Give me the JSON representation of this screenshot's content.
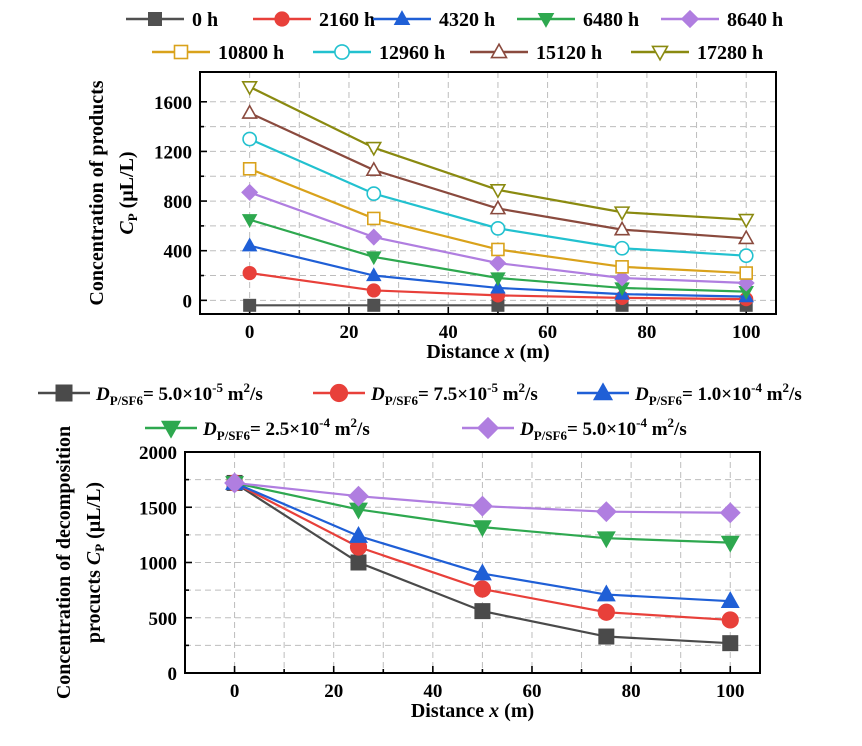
{
  "chart_data": [
    {
      "type": "line",
      "title": "",
      "xlabel": {
        "prefix": "Distance ",
        "var": "x",
        "suffix": " (m)"
      },
      "ylabel": {
        "line1": "Concentration of  products",
        "var": "C",
        "sub": "P",
        "unit": " (μL/L)"
      },
      "xlim": [
        -10,
        106
      ],
      "ylim": [
        -110,
        1840
      ],
      "xticks": [
        0,
        20,
        40,
        60,
        80,
        100
      ],
      "yticks": [
        0,
        400,
        800,
        1200,
        1600
      ],
      "grid": true,
      "legend_position": "top",
      "x": [
        0,
        25,
        50,
        75,
        100
      ],
      "series": [
        {
          "name": "0 h",
          "color": "#505050",
          "marker": "square-filled",
          "values": [
            -40,
            -40,
            -40,
            -40,
            -40
          ]
        },
        {
          "name": "2160 h",
          "color": "#e8403a",
          "marker": "circle-filled",
          "values": [
            220,
            80,
            40,
            20,
            10
          ]
        },
        {
          "name": "4320 h",
          "color": "#1f5fd6",
          "marker": "triangle-up-filled",
          "values": [
            440,
            200,
            100,
            50,
            30
          ]
        },
        {
          "name": "6480 h",
          "color": "#2ea84f",
          "marker": "triangle-down-filled",
          "values": [
            650,
            350,
            180,
            100,
            70
          ]
        },
        {
          "name": "8640 h",
          "color": "#b07ee0",
          "marker": "diamond-filled",
          "values": [
            870,
            510,
            300,
            180,
            140
          ]
        },
        {
          "name": "10800 h",
          "color": "#d9a21b",
          "marker": "square-open",
          "values": [
            1060,
            660,
            410,
            270,
            220
          ]
        },
        {
          "name": "12960 h",
          "color": "#22c1cf",
          "marker": "circle-open",
          "values": [
            1300,
            860,
            580,
            420,
            360
          ]
        },
        {
          "name": "15120 h",
          "color": "#8a4a3e",
          "marker": "triangle-up-open",
          "values": [
            1510,
            1050,
            740,
            570,
            500
          ]
        },
        {
          "name": "17280 h",
          "color": "#8a8a10",
          "marker": "triangle-down-open",
          "values": [
            1720,
            1230,
            890,
            710,
            650
          ]
        }
      ]
    },
    {
      "type": "line",
      "title": "",
      "xlabel": {
        "prefix": "Distance ",
        "var": "x",
        "suffix": " (m)"
      },
      "ylabel": {
        "line1": "Concentration of decomposition",
        "line2": "procucts ",
        "var": "C",
        "sub": "P",
        "unit": " (μL/L)"
      },
      "xlim": [
        -10,
        106
      ],
      "ylim": [
        0,
        2000
      ],
      "xticks": [
        0,
        20,
        40,
        60,
        80,
        100
      ],
      "yticks": [
        0,
        500,
        1000,
        1500,
        2000
      ],
      "grid": true,
      "legend_position": "top",
      "x": [
        0,
        25,
        50,
        75,
        100
      ],
      "series": [
        {
          "name": "D_P/SF6 = 5.0×10^-5 m²/s",
          "label": {
            "sub": "P/SF6",
            "mant": "= 5.0×10",
            "exp": "-5",
            "unit": " m",
            "uexp": "2",
            "tail": "/s"
          },
          "color": "#4a4a4a",
          "marker": "square-filled",
          "values": [
            1720,
            1000,
            560,
            330,
            270
          ]
        },
        {
          "name": "D_P/SF6 = 7.5×10^-5 m²/s",
          "label": {
            "sub": "P/SF6",
            "mant": "= 7.5×10",
            "exp": "-5",
            "unit": " m",
            "uexp": "2",
            "tail": "/s"
          },
          "color": "#e8403a",
          "marker": "circle-filled",
          "values": [
            1720,
            1140,
            760,
            550,
            480
          ]
        },
        {
          "name": "D_P/SF6 = 1.0×10^-4 m²/s",
          "label": {
            "sub": "P/SF6",
            "mant": "= 1.0×10",
            "exp": "-4",
            "unit": " m",
            "uexp": "2",
            "tail": "/s"
          },
          "color": "#1f5fd6",
          "marker": "triangle-up-filled",
          "values": [
            1720,
            1240,
            900,
            710,
            650
          ]
        },
        {
          "name": "D_P/SF6 = 2.5×10^-4 m²/s",
          "label": {
            "sub": "P/SF6",
            "mant": "= 2.5×10",
            "exp": "-4",
            "unit": " m",
            "uexp": "2",
            "tail": "/s"
          },
          "color": "#2ea84f",
          "marker": "triangle-down-filled",
          "values": [
            1720,
            1480,
            1320,
            1220,
            1180
          ]
        },
        {
          "name": "D_P/SF6 = 5.0×10^-4 m²/s",
          "label": {
            "sub": "P/SF6",
            "mant": "= 5.0×10",
            "exp": "-4",
            "unit": " m",
            "uexp": "2",
            "tail": "/s"
          },
          "color": "#b07ee0",
          "marker": "diamond-filled",
          "values": [
            1720,
            1600,
            1510,
            1460,
            1450
          ]
        }
      ]
    }
  ]
}
